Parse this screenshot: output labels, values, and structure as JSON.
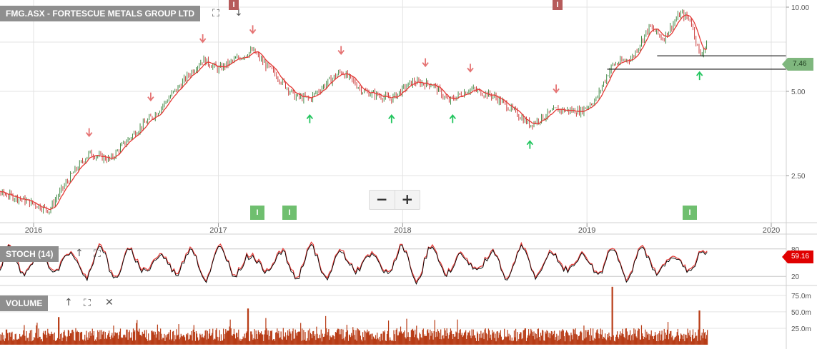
{
  "ticker_label": "FMG.ASX - FORTESCUE METALS GROUP LTD",
  "stoch_label": "STOCH (14)",
  "volume_label": "VOLUME",
  "icons": {
    "fullscreen": "fullscreen-icon",
    "collapse": "arrow-up-icon",
    "expand": "arrow-down-icon",
    "close": "close-icon",
    "zoom_out": "minus-icon",
    "zoom_in": "plus-icon"
  },
  "zoom": {
    "minus": "−",
    "plus": "+"
  },
  "price_axis_ticks": [
    "10.00",
    "5.00",
    "2.50"
  ],
  "stoch_axis_ticks": [
    "80",
    "20"
  ],
  "volume_axis_ticks": [
    "75.0m",
    "50.0m",
    "25.0m"
  ],
  "year_labels": [
    "2016",
    "2017",
    "2018",
    "2019",
    "2020"
  ],
  "current_price_flag": "7.46",
  "current_stoch_flag": "59.16",
  "event_badges": {
    "info": "I"
  },
  "colors": {
    "bull": "#2e7d32",
    "bear": "#c62828",
    "ma": "#e53935",
    "price_flag": "#7fb77e",
    "stoch_flag": "#e00000",
    "volume": "#b83c16",
    "up_arrow": "#22c55e",
    "down_arrow": "#e57373",
    "badge": "#6fbf6f",
    "grid": "#e3e3e3"
  },
  "chart_data": [
    {
      "type": "candlestick",
      "title": "FMG.ASX - FORTESCUE METALS GROUP LTD",
      "scale": "log",
      "ylim": [
        1.75,
        11.0
      ],
      "yticks": [
        10.0,
        5.0,
        2.5
      ],
      "x_range": [
        "2015-09",
        "2020-02"
      ],
      "xticks": [
        "2016",
        "2017",
        "2018",
        "2019",
        "2020"
      ],
      "close_path": [
        {
          "date": "2015-09-01",
          "close": 2.3
        },
        {
          "date": "2015-12-01",
          "close": 2.08
        },
        {
          "date": "2016-02-01",
          "close": 1.88
        },
        {
          "date": "2016-04-20",
          "close": 3.0
        },
        {
          "date": "2016-06-01",
          "close": 2.85
        },
        {
          "date": "2016-09-01",
          "close": 4.2
        },
        {
          "date": "2016-10-15",
          "close": 5.2
        },
        {
          "date": "2016-12-01",
          "close": 6.5
        },
        {
          "date": "2017-01-01",
          "close": 6.0
        },
        {
          "date": "2017-03-10",
          "close": 7.0
        },
        {
          "date": "2017-04-01",
          "close": 6.3
        },
        {
          "date": "2017-06-01",
          "close": 4.8
        },
        {
          "date": "2017-07-01",
          "close": 4.7
        },
        {
          "date": "2017-09-01",
          "close": 5.9
        },
        {
          "date": "2017-10-15",
          "close": 5.0
        },
        {
          "date": "2017-12-10",
          "close": 4.7
        },
        {
          "date": "2018-01-20",
          "close": 5.4
        },
        {
          "date": "2018-03-01",
          "close": 5.3
        },
        {
          "date": "2018-04-01",
          "close": 4.6
        },
        {
          "date": "2018-05-15",
          "close": 5.1
        },
        {
          "date": "2018-07-01",
          "close": 4.8
        },
        {
          "date": "2018-09-10",
          "close": 3.8
        },
        {
          "date": "2018-11-01",
          "close": 4.3
        },
        {
          "date": "2018-12-20",
          "close": 4.25
        },
        {
          "date": "2019-01-20",
          "close": 4.7
        },
        {
          "date": "2019-02-20",
          "close": 6.2
        },
        {
          "date": "2019-04-01",
          "close": 6.6
        },
        {
          "date": "2019-05-05",
          "close": 8.5
        },
        {
          "date": "2019-06-01",
          "close": 7.7
        },
        {
          "date": "2019-07-05",
          "close": 9.5
        },
        {
          "date": "2019-07-25",
          "close": 9.0
        },
        {
          "date": "2019-08-12",
          "close": 6.7
        },
        {
          "date": "2019-08-28",
          "close": 7.46
        }
      ],
      "moving_average": "red line",
      "horizontal_lines": [
        6.7,
        6.0
      ],
      "last_price": 7.46,
      "down_arrow_dates": [
        "2015-09-01",
        "2016-04-20",
        "2016-08-20",
        "2016-12-01",
        "2017-03-10",
        "2017-09-01",
        "2018-02-15",
        "2018-05-15",
        "2018-11-01",
        "2019-07-12"
      ],
      "up_arrow_dates": [
        "2017-07-01",
        "2017-12-10",
        "2018-04-10",
        "2018-09-10",
        "2019-08-12"
      ],
      "event_dates": [
        "2017-02-15",
        "2017-03-25",
        "2017-07-01",
        "2019-07-30",
        "2019-08-20"
      ]
    },
    {
      "type": "line",
      "title": "STOCH (14)",
      "ylim": [
        0,
        100
      ],
      "yticks": [
        80,
        20
      ],
      "series": [
        {
          "color": "#e53935"
        },
        {
          "color": "#000000"
        }
      ],
      "last_value": 59.16
    },
    {
      "type": "bar",
      "title": "VOLUME",
      "ylim": [
        0,
        90
      ],
      "yticks": [
        "75.0m",
        "50.0m",
        "25.0m"
      ],
      "typical_range_m": [
        5,
        25
      ],
      "peaks": [
        {
          "date": "2016-02-20",
          "value_m": 42
        },
        {
          "date": "2017-03-01",
          "value_m": 55
        },
        {
          "date": "2019-02-20",
          "value_m": 88
        },
        {
          "date": "2019-08-12",
          "value_m": 52
        }
      ]
    }
  ]
}
